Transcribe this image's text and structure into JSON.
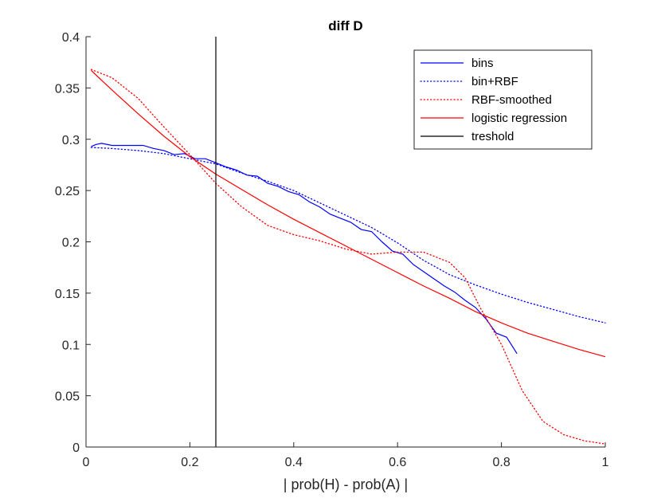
{
  "chart_data": {
    "type": "line",
    "title": "diff D",
    "xlabel": "| prob(H) - prob(A) |",
    "ylabel": "",
    "xlim": [
      0,
      1
    ],
    "ylim": [
      0,
      0.4
    ],
    "xticks": [
      0,
      0.2,
      0.4,
      0.6,
      0.8,
      1
    ],
    "xtick_labels": [
      "0",
      "0.2",
      "0.4",
      "0.6",
      "0.8",
      "1"
    ],
    "yticks": [
      0,
      0.05,
      0.1,
      0.15,
      0.2,
      0.25,
      0.3,
      0.35,
      0.4
    ],
    "ytick_labels": [
      "0",
      "0.05",
      "0.1",
      "0.15",
      "0.2",
      "0.25",
      "0.3",
      "0.35",
      "0.4"
    ],
    "grid": false,
    "legend_position": "top-right",
    "threshold_x": 0.25,
    "series": [
      {
        "name": "bins",
        "color": "#0000ff",
        "style": "solid",
        "x": [
          0.01,
          0.02,
          0.03,
          0.05,
          0.07,
          0.09,
          0.11,
          0.13,
          0.15,
          0.17,
          0.19,
          0.21,
          0.23,
          0.25,
          0.27,
          0.29,
          0.31,
          0.33,
          0.35,
          0.37,
          0.39,
          0.41,
          0.43,
          0.45,
          0.47,
          0.49,
          0.51,
          0.53,
          0.55,
          0.57,
          0.59,
          0.61,
          0.63,
          0.65,
          0.67,
          0.69,
          0.71,
          0.73,
          0.75,
          0.77,
          0.79,
          0.81,
          0.83
        ],
        "y": [
          0.293,
          0.295,
          0.296,
          0.294,
          0.294,
          0.294,
          0.294,
          0.291,
          0.289,
          0.285,
          0.286,
          0.281,
          0.281,
          0.277,
          0.273,
          0.27,
          0.265,
          0.264,
          0.257,
          0.254,
          0.249,
          0.246,
          0.239,
          0.234,
          0.227,
          0.223,
          0.219,
          0.212,
          0.21,
          0.2,
          0.191,
          0.188,
          0.178,
          0.171,
          0.164,
          0.157,
          0.151,
          0.143,
          0.136,
          0.125,
          0.111,
          0.107,
          0.091
        ]
      },
      {
        "name": "bin+RBF",
        "color": "#0000ff",
        "style": "dotted",
        "x": [
          0.01,
          0.05,
          0.1,
          0.15,
          0.2,
          0.25,
          0.3,
          0.35,
          0.4,
          0.45,
          0.5,
          0.55,
          0.6,
          0.65,
          0.7,
          0.75,
          0.8,
          0.85,
          0.9,
          0.95,
          1.0
        ],
        "y": [
          0.292,
          0.291,
          0.289,
          0.286,
          0.281,
          0.276,
          0.267,
          0.259,
          0.25,
          0.238,
          0.226,
          0.214,
          0.199,
          0.182,
          0.168,
          0.158,
          0.149,
          0.141,
          0.134,
          0.127,
          0.121
        ]
      },
      {
        "name": "RBF-smoothed",
        "color": "#ff0000",
        "style": "dotted",
        "x": [
          0.01,
          0.05,
          0.1,
          0.15,
          0.2,
          0.25,
          0.3,
          0.35,
          0.4,
          0.45,
          0.5,
          0.55,
          0.6,
          0.65,
          0.7,
          0.73,
          0.76,
          0.8,
          0.84,
          0.88,
          0.92,
          0.96,
          1.0
        ],
        "y": [
          0.368,
          0.36,
          0.34,
          0.312,
          0.285,
          0.257,
          0.234,
          0.216,
          0.207,
          0.201,
          0.193,
          0.188,
          0.19,
          0.19,
          0.18,
          0.165,
          0.135,
          0.1,
          0.055,
          0.025,
          0.012,
          0.006,
          0.003
        ]
      },
      {
        "name": "logistic regression",
        "color": "#ff0000",
        "style": "solid",
        "x": [
          0.01,
          0.05,
          0.1,
          0.15,
          0.2,
          0.25,
          0.3,
          0.35,
          0.4,
          0.45,
          0.5,
          0.55,
          0.6,
          0.65,
          0.7,
          0.75,
          0.8,
          0.85,
          0.9,
          0.95,
          1.0
        ],
        "y": [
          0.367,
          0.348,
          0.325,
          0.303,
          0.283,
          0.266,
          0.251,
          0.236,
          0.222,
          0.209,
          0.196,
          0.183,
          0.17,
          0.157,
          0.145,
          0.132,
          0.121,
          0.111,
          0.103,
          0.095,
          0.088
        ]
      },
      {
        "name": "treshold",
        "color": "#000000",
        "style": "solid",
        "x": [
          0.25,
          0.25
        ],
        "y": [
          0,
          0.4
        ]
      }
    ]
  }
}
